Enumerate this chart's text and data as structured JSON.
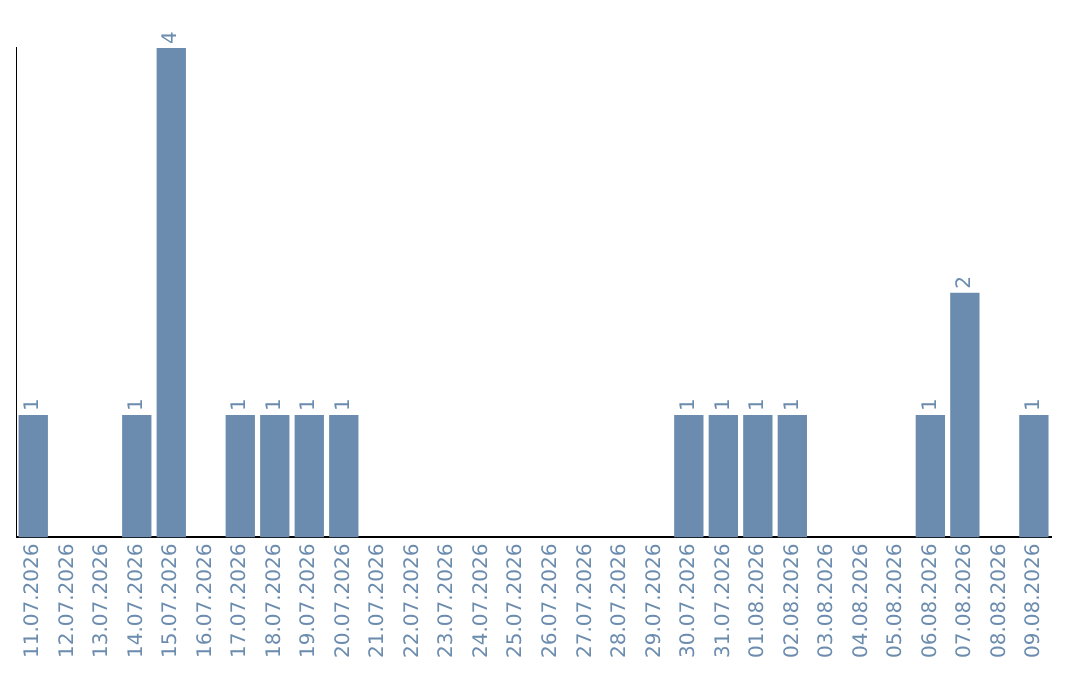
{
  "chart_data": {
    "type": "bar",
    "categories": [
      "11.07.2026",
      "12.07.2026",
      "13.07.2026",
      "14.07.2026",
      "15.07.2026",
      "16.07.2026",
      "17.07.2026",
      "18.07.2026",
      "19.07.2026",
      "20.07.2026",
      "21.07.2026",
      "22.07.2026",
      "23.07.2026",
      "24.07.2026",
      "25.07.2026",
      "26.07.2026",
      "27.07.2026",
      "28.07.2026",
      "29.07.2026",
      "30.07.2026",
      "31.07.2026",
      "01.08.2026",
      "02.08.2026",
      "03.08.2026",
      "04.08.2026",
      "05.08.2026",
      "06.08.2026",
      "07.08.2026",
      "08.08.2026",
      "09.08.2026"
    ],
    "values": [
      1,
      0,
      0,
      1,
      4,
      0,
      1,
      1,
      1,
      1,
      0,
      0,
      0,
      0,
      0,
      0,
      0,
      0,
      0,
      1,
      1,
      1,
      1,
      0,
      0,
      0,
      1,
      2,
      0,
      1
    ],
    "value_labels": [
      "1",
      null,
      null,
      "1",
      "4",
      null,
      "1",
      "1",
      "1",
      "1",
      null,
      null,
      null,
      null,
      null,
      null,
      null,
      null,
      null,
      "1",
      "1",
      "1",
      "1",
      null,
      null,
      null,
      "1",
      "2",
      null,
      "1"
    ],
    "color": "#6b8cae",
    "tick_labels": "x",
    "grid": false,
    "legend": false
  }
}
